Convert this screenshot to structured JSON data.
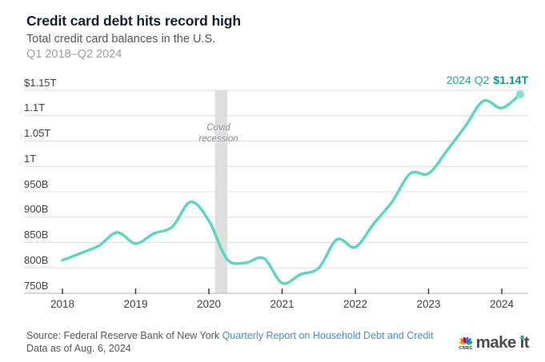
{
  "header": {
    "title": "Credit card debt hits record high",
    "subtitle": "Total credit card balances in the U.S.",
    "period": "Q1 2018–Q2 2024"
  },
  "annotation": {
    "label": "2024 Q2",
    "value": "$1.14T"
  },
  "covid": {
    "line1": "Covid",
    "line2": "recession"
  },
  "chart_data": {
    "type": "line",
    "title": "Credit card debt hits record high",
    "subtitle": "Total credit card balances in the U.S.",
    "xlabel": "",
    "ylabel": "",
    "grid": true,
    "ylim": [
      750,
      1150
    ],
    "y_tick_labels": [
      "$1.15T",
      "1.1T",
      "1.05T",
      "1T",
      "950B",
      "900B",
      "850B",
      "800B",
      "750B"
    ],
    "y_tick_values": [
      1150,
      1100,
      1050,
      1000,
      950,
      900,
      850,
      800,
      750
    ],
    "x_tick_labels": [
      "2018",
      "2019",
      "2020",
      "2021",
      "2022",
      "2023",
      "2024"
    ],
    "series": [
      {
        "name": "Total credit card balances",
        "quarters": [
          "2018 Q1",
          "2018 Q2",
          "2018 Q3",
          "2018 Q4",
          "2019 Q1",
          "2019 Q2",
          "2019 Q3",
          "2019 Q4",
          "2020 Q1",
          "2020 Q2",
          "2020 Q3",
          "2020 Q4",
          "2021 Q1",
          "2021 Q2",
          "2021 Q3",
          "2021 Q4",
          "2022 Q1",
          "2022 Q2",
          "2022 Q3",
          "2022 Q4",
          "2023 Q1",
          "2023 Q2",
          "2023 Q3",
          "2023 Q4",
          "2024 Q1",
          "2024 Q2"
        ],
        "values_billions": [
          815,
          829,
          844,
          870,
          848,
          868,
          881,
          930,
          893,
          817,
          810,
          819,
          770,
          787,
          800,
          856,
          841,
          887,
          930,
          986,
          986,
          1031,
          1079,
          1129,
          1115,
          1142
        ]
      }
    ],
    "end_point": {
      "quarter": "2024 Q2",
      "label": "$1.14T",
      "value_billions": 1142
    },
    "covid_band": {
      "from": "Feb 2020",
      "to": "Apr 2020",
      "label": "Covid recession"
    },
    "line_color": "#5bd5bf",
    "endpoint_color": "#85e2cf",
    "annotation_color": "#0f9687",
    "band_color": "#dedede"
  },
  "footer": {
    "source_prefix": "Source: Federal Reserve Bank of New York ",
    "source_link": "Quarterly Report on Household Debt and Credit",
    "data_as_of": "Data as of Aug. 6, 2024"
  },
  "logo": {
    "network": "CNBC",
    "brand_make": "make",
    "brand_it": "it"
  }
}
